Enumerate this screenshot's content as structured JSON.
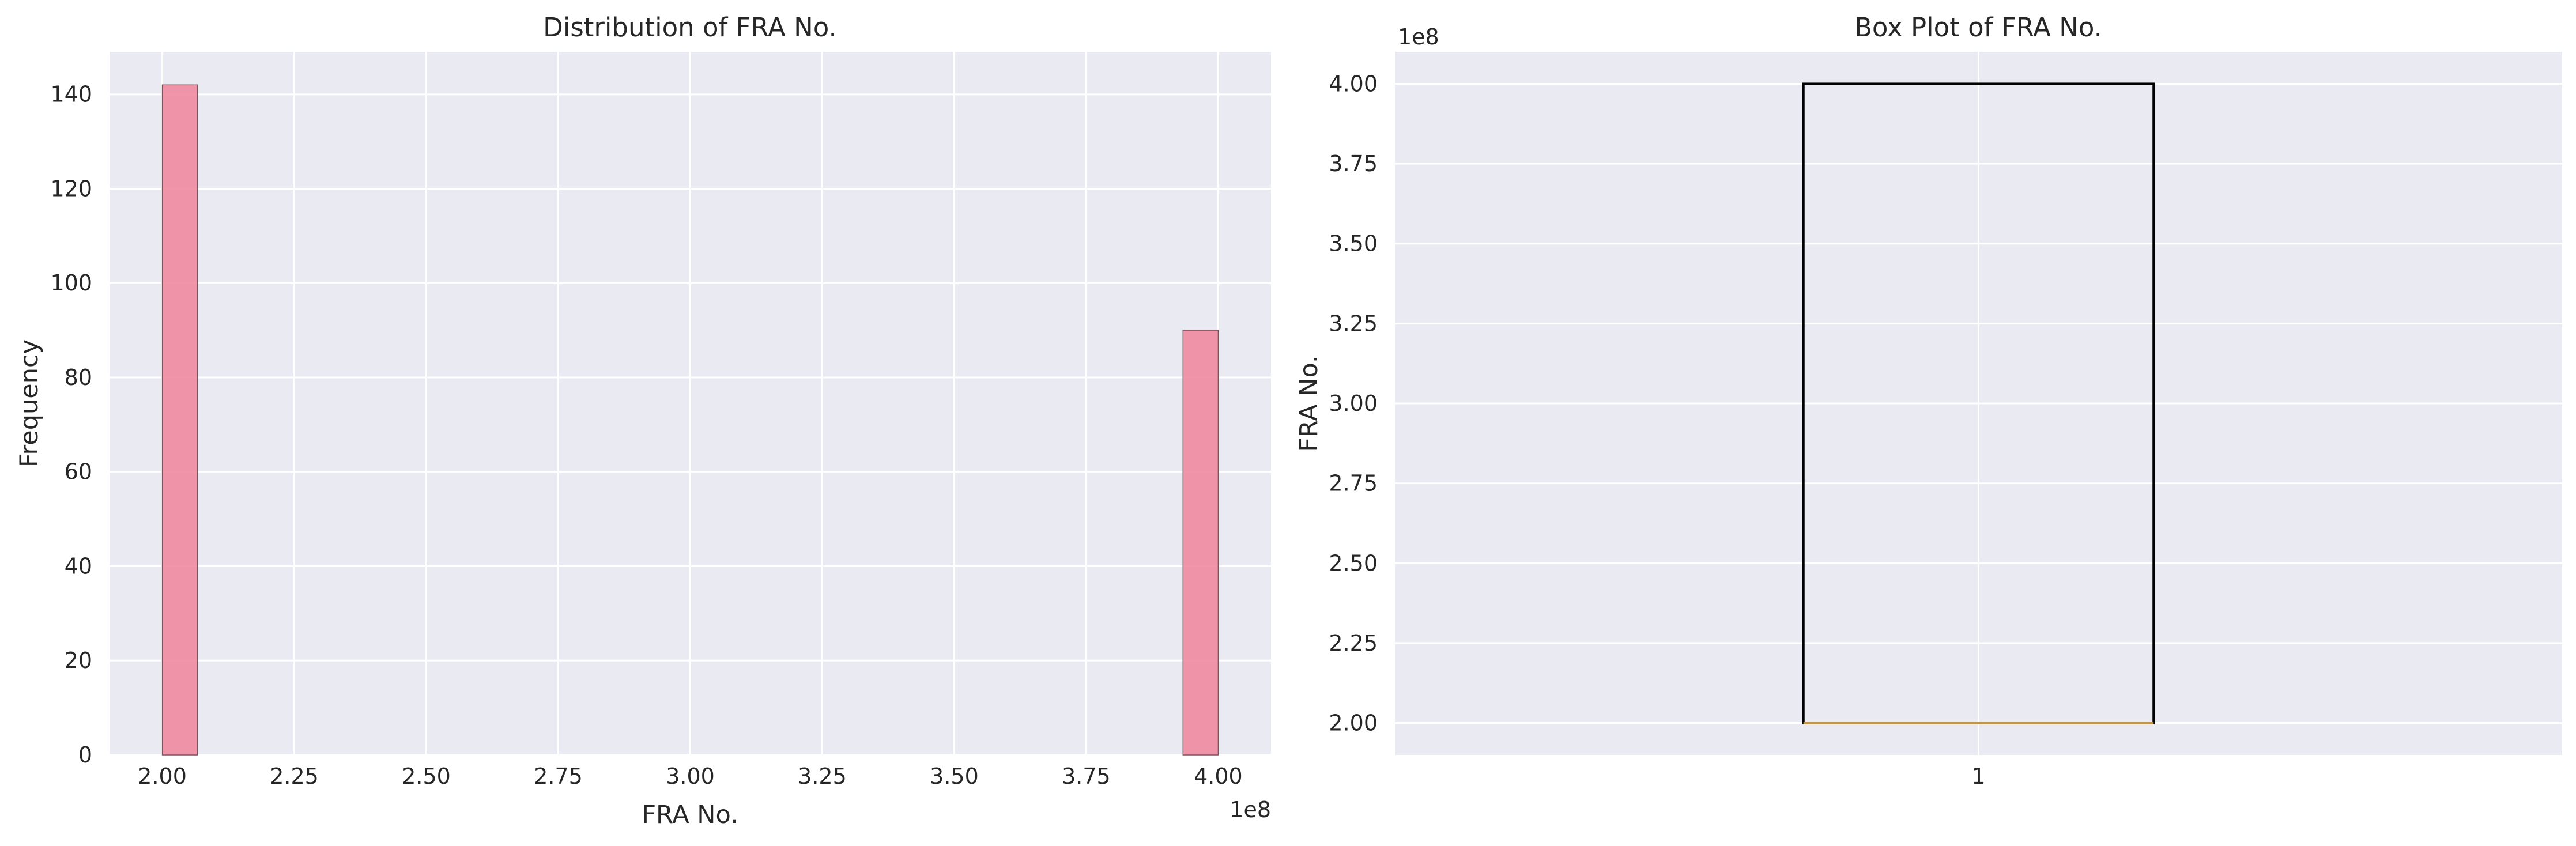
{
  "chart_data": [
    {
      "type": "histogram",
      "title": "Distribution of FRA No.",
      "xlabel": "FRA No.",
      "ylabel": "Frequency",
      "x_offset_label": "1e8",
      "xlim": [
        1.9,
        4.1
      ],
      "ylim": [
        0,
        149
      ],
      "xticks": [
        2.0,
        2.25,
        2.5,
        2.75,
        3.0,
        3.25,
        3.5,
        3.75,
        4.0
      ],
      "xtick_labels": [
        "2.00",
        "2.25",
        "2.50",
        "2.75",
        "3.00",
        "3.25",
        "3.50",
        "3.75",
        "4.00"
      ],
      "yticks": [
        0,
        20,
        40,
        60,
        80,
        100,
        120,
        140
      ],
      "ytick_labels": [
        "0",
        "20",
        "40",
        "60",
        "80",
        "100",
        "120",
        "140"
      ],
      "bins": [
        {
          "x0": 2.0,
          "x1": 2.0667,
          "count": 142
        },
        {
          "x0": 3.9333,
          "x1": 4.0,
          "count": 90
        }
      ],
      "bar_color": "#f08aa0",
      "grid": true
    },
    {
      "type": "box",
      "title": "Box Plot of FRA No.",
      "ylabel": "FRA No.",
      "y_offset_label": "1e8",
      "categories": [
        "1"
      ],
      "ylim": [
        1.9,
        4.1
      ],
      "yticks": [
        2.0,
        2.25,
        2.5,
        2.75,
        3.0,
        3.25,
        3.5,
        3.75,
        4.0
      ],
      "ytick_labels": [
        "2.00",
        "2.25",
        "2.50",
        "2.75",
        "3.00",
        "3.25",
        "3.50",
        "3.75",
        "4.00"
      ],
      "box": {
        "min": 2.0,
        "q1": 2.0,
        "median": 2.0,
        "q3": 4.0,
        "max": 4.0
      },
      "median_color": "#c8953a",
      "grid": true
    }
  ],
  "colors": {
    "axes_bg": "#eaeaf2",
    "grid": "#ffffff",
    "text": "#262626"
  }
}
